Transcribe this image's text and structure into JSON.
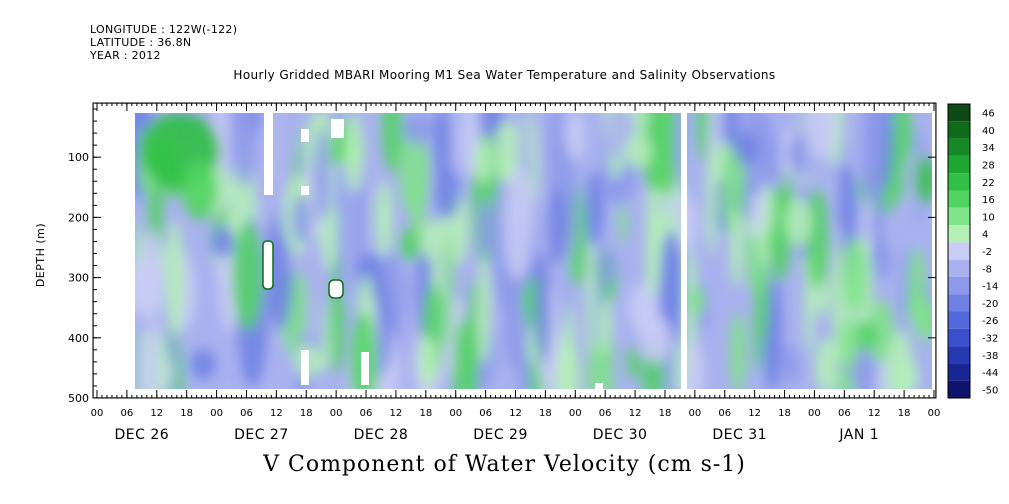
{
  "header": {
    "longitude": "LONGITUDE : 122W(-122)",
    "latitude": "LATITUDE : 36.8N",
    "year": "YEAR : 2012"
  },
  "chart_data": {
    "type": "heatmap",
    "title": "Hourly Gridded MBARI Mooring M1 Sea Water Temperature and Salinity Observations",
    "colorbar_title": "V Component of Water Velocity (cm s-1)",
    "ylabel": "DEPTH (m)",
    "xlabel": "",
    "ylim": [
      500,
      10
    ],
    "y_ticks": [
      100,
      200,
      300,
      400,
      500
    ],
    "x_hour_ticks": [
      "00",
      "06",
      "12",
      "18",
      "00",
      "06",
      "12",
      "18",
      "00",
      "06",
      "12",
      "18",
      "00",
      "06",
      "12",
      "18",
      "00",
      "06",
      "12",
      "18",
      "00",
      "06",
      "12",
      "18",
      "00",
      "06",
      "12",
      "18",
      "00"
    ],
    "x_day_labels": [
      "DEC 26",
      "DEC 27",
      "DEC 28",
      "DEC 29",
      "DEC 30",
      "DEC 31",
      "JAN  1"
    ],
    "colorbar_levels": [
      46,
      40,
      34,
      28,
      22,
      16,
      10,
      4,
      -2,
      -8,
      -14,
      -20,
      -26,
      -32,
      -38,
      -44,
      -50
    ],
    "colorbar_colors": [
      "#0d4a14",
      "#0f6a1c",
      "#148a26",
      "#1ea733",
      "#30c046",
      "#52d462",
      "#7fe388",
      "#b4f0b6",
      "#c9cdf4",
      "#aab2ef",
      "#8d9aea",
      "#6f81e3",
      "#5267d9",
      "#3a4fcb",
      "#2639b3",
      "#182694",
      "#0e156b"
    ],
    "series": [
      {
        "name": "",
        "approx_field_note_removed": true
      }
    ]
  }
}
